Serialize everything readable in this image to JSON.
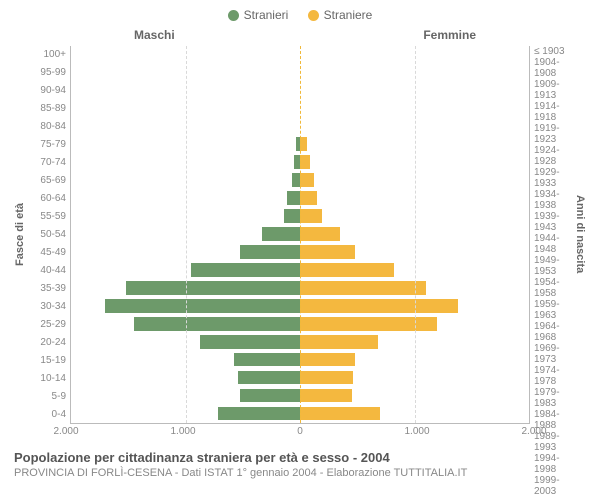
{
  "legend": {
    "male": {
      "label": "Stranieri",
      "color": "#6d9a6a"
    },
    "female": {
      "label": "Straniere",
      "color": "#f4b83f"
    }
  },
  "headers": {
    "left": "Maschi",
    "right": "Femmine"
  },
  "axis_labels": {
    "left": "Fasce di età",
    "right": "Anni di nascita"
  },
  "chart": {
    "type": "population-pyramid",
    "x_max": 2000,
    "x_ticks": [
      2000,
      1000,
      0,
      1000,
      2000
    ],
    "x_tick_labels": [
      "2.000",
      "1.000",
      "0",
      "1.000",
      "2.000"
    ],
    "grid_color": "#d9d9d9",
    "center_line_color": "#f0b93a",
    "background_color": "#ffffff",
    "male_color": "#6d9a6a",
    "female_color": "#f4b83f",
    "rows": [
      {
        "age": "100+",
        "birth": "≤ 1903",
        "m": 0,
        "f": 0
      },
      {
        "age": "95-99",
        "birth": "1904-1908",
        "m": 0,
        "f": 0
      },
      {
        "age": "90-94",
        "birth": "1909-1913",
        "m": 0,
        "f": 0
      },
      {
        "age": "85-89",
        "birth": "1914-1918",
        "m": 0,
        "f": 0
      },
      {
        "age": "80-84",
        "birth": "1919-1923",
        "m": 0,
        "f": 0
      },
      {
        "age": "75-79",
        "birth": "1924-1928",
        "m": 35,
        "f": 60
      },
      {
        "age": "70-74",
        "birth": "1929-1933",
        "m": 50,
        "f": 90
      },
      {
        "age": "65-69",
        "birth": "1934-1938",
        "m": 70,
        "f": 120
      },
      {
        "age": "60-64",
        "birth": "1939-1943",
        "m": 110,
        "f": 150
      },
      {
        "age": "55-59",
        "birth": "1944-1948",
        "m": 140,
        "f": 190
      },
      {
        "age": "50-54",
        "birth": "1949-1953",
        "m": 330,
        "f": 350
      },
      {
        "age": "45-49",
        "birth": "1954-1958",
        "m": 520,
        "f": 480
      },
      {
        "age": "40-44",
        "birth": "1959-1963",
        "m": 950,
        "f": 820
      },
      {
        "age": "35-39",
        "birth": "1964-1968",
        "m": 1520,
        "f": 1100
      },
      {
        "age": "30-34",
        "birth": "1969-1973",
        "m": 1700,
        "f": 1380
      },
      {
        "age": "25-29",
        "birth": "1974-1978",
        "m": 1450,
        "f": 1200
      },
      {
        "age": "20-24",
        "birth": "1979-1983",
        "m": 870,
        "f": 680
      },
      {
        "age": "15-19",
        "birth": "1984-1988",
        "m": 580,
        "f": 480
      },
      {
        "age": "10-14",
        "birth": "1989-1993",
        "m": 540,
        "f": 460
      },
      {
        "age": "5-9",
        "birth": "1994-1998",
        "m": 520,
        "f": 450
      },
      {
        "age": "0-4",
        "birth": "1999-2003",
        "m": 720,
        "f": 700
      }
    ]
  },
  "footer": {
    "title": "Popolazione per cittadinanza straniera per età e sesso - 2004",
    "subtitle": "PROVINCIA DI FORLÌ-CESENA - Dati ISTAT 1° gennaio 2004 - Elaborazione TUTTITALIA.IT"
  }
}
